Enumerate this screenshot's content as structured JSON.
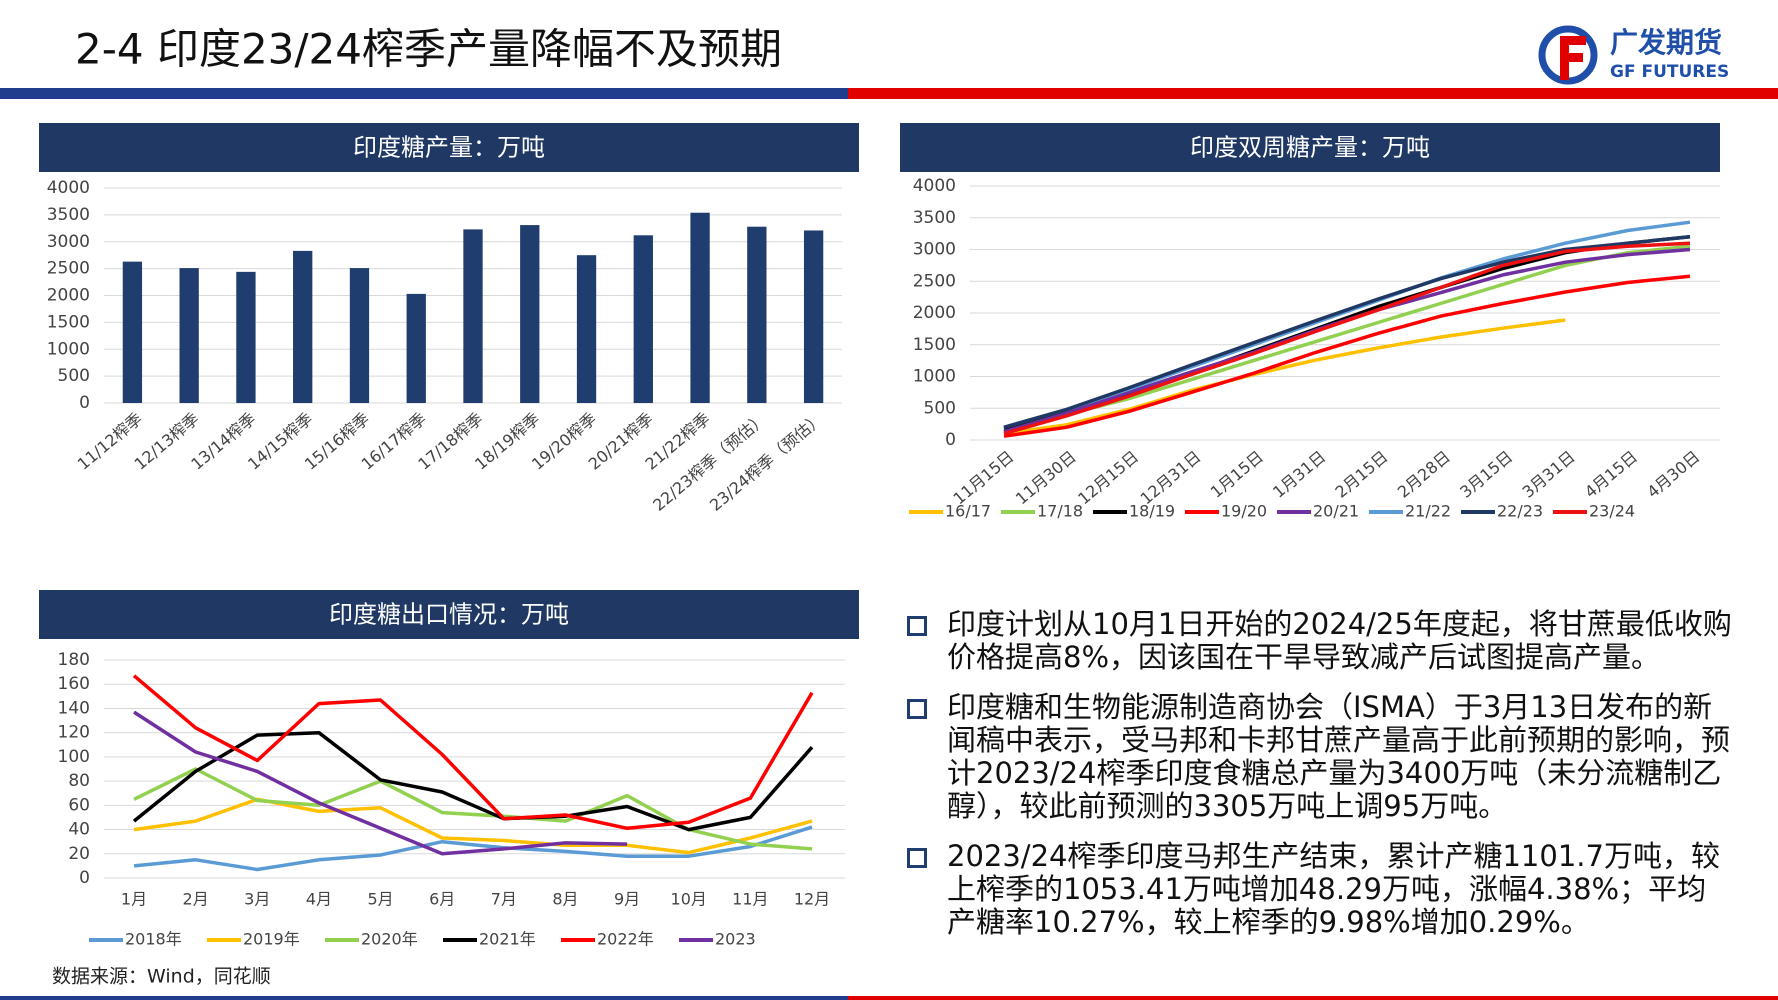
{
  "title": "2-4 印度23/24榨季产量降幅不及预期",
  "logo": {
    "name": "广发期货",
    "name_en": "GF FUTURES"
  },
  "chart_data": [
    {
      "type": "bar",
      "title": "印度糖产量：万吨",
      "categories": [
        "11/12榨季",
        "12/13榨季",
        "13/14榨季",
        "14/15榨季",
        "15/16榨季",
        "16/17榨季",
        "17/18榨季",
        "18/19榨季",
        "19/20榨季",
        "20/21榨季",
        "21/22榨季",
        "22/23榨季（预估）",
        "23/24榨季（预估）"
      ],
      "values": [
        2630,
        2510,
        2440,
        2830,
        2510,
        2030,
        3230,
        3310,
        2750,
        3120,
        3540,
        3280,
        3210
      ],
      "color": "#1f3d6e",
      "ylim": [
        0,
        4000
      ],
      "yticks": [
        0,
        500,
        1000,
        1500,
        2000,
        2500,
        3000,
        3500,
        4000
      ],
      "grid": true
    },
    {
      "type": "line",
      "title": "印度双周糖产量：万吨",
      "categories": [
        "11月15日",
        "11月30日",
        "12月15日",
        "12月31日",
        "1月15日",
        "1月31日",
        "2月15日",
        "2月28日",
        "3月15日",
        "3月31日",
        "4月15日",
        "4月30日"
      ],
      "series": [
        {
          "name": "16/17",
          "color": "#ffc000",
          "values": [
            100,
            240,
            480,
            780,
            1030,
            1260,
            1450,
            1620,
            1760,
            1890,
            null,
            null
          ]
        },
        {
          "name": "17/18",
          "color": "#92d050",
          "values": [
            150,
            400,
            650,
            950,
            1250,
            1550,
            1850,
            2150,
            2450,
            2750,
            2950,
            3050
          ]
        },
        {
          "name": "18/19",
          "color": "#000000",
          "values": [
            180,
            450,
            700,
            1050,
            1400,
            1750,
            2100,
            2400,
            2700,
            2950,
            3100,
            3200
          ]
        },
        {
          "name": "19/20",
          "color": "#ff0000",
          "values": [
            60,
            200,
            450,
            750,
            1050,
            1380,
            1680,
            1950,
            2150,
            2330,
            2480,
            2580
          ]
        },
        {
          "name": "20/21",
          "color": "#7030a0",
          "values": [
            130,
            420,
            750,
            1070,
            1380,
            1730,
            2050,
            2320,
            2600,
            2800,
            2920,
            3000
          ]
        },
        {
          "name": "21/22",
          "color": "#5b9bd5",
          "values": [
            200,
            480,
            800,
            1150,
            1500,
            1850,
            2200,
            2550,
            2850,
            3100,
            3300,
            3430
          ]
        },
        {
          "name": "22/23",
          "color": "#203864",
          "values": [
            200,
            480,
            820,
            1180,
            1530,
            1880,
            2220,
            2540,
            2800,
            3000,
            3100,
            3200
          ]
        },
        {
          "name": "23/24",
          "color": "#ee1111",
          "values": [
            100,
            380,
            690,
            1030,
            1360,
            1710,
            2050,
            2400,
            2750,
            2970,
            3050,
            3100
          ]
        }
      ],
      "ylim": [
        0,
        4000
      ],
      "yticks": [
        0,
        500,
        1000,
        1500,
        2000,
        2500,
        3000,
        3500,
        4000
      ],
      "grid": true
    },
    {
      "type": "line",
      "title": "印度糖出口情况：万吨",
      "categories": [
        "1月",
        "2月",
        "3月",
        "4月",
        "5月",
        "6月",
        "7月",
        "8月",
        "9月",
        "10月",
        "11月",
        "12月"
      ],
      "series": [
        {
          "name": "2018年",
          "color": "#5b9bd5",
          "values": [
            10,
            15,
            7,
            15,
            19,
            30,
            25,
            22,
            18,
            18,
            26,
            42
          ]
        },
        {
          "name": "2019年",
          "color": "#ffc000",
          "values": [
            40,
            47,
            65,
            55,
            58,
            33,
            31,
            27,
            27,
            21,
            33,
            47
          ]
        },
        {
          "name": "2020年",
          "color": "#92d050",
          "values": [
            65,
            90,
            64,
            60,
            80,
            54,
            51,
            47,
            68,
            40,
            28,
            24
          ]
        },
        {
          "name": "2021年",
          "color": "#000000",
          "values": [
            47,
            88,
            118,
            120,
            81,
            71,
            49,
            51,
            59,
            40,
            50,
            108
          ]
        },
        {
          "name": "2022年",
          "color": "#ff0000",
          "values": [
            167,
            124,
            97,
            144,
            147,
            102,
            49,
            52,
            41,
            46,
            66,
            153
          ]
        },
        {
          "name": "2023",
          "color": "#7030a0",
          "values": [
            137,
            104,
            88,
            62,
            41,
            20,
            24,
            29,
            28,
            null,
            null,
            null
          ]
        }
      ],
      "ylim": [
        0,
        180
      ],
      "yticks": [
        0,
        20,
        40,
        60,
        80,
        100,
        120,
        140,
        160,
        180
      ],
      "grid": true
    }
  ],
  "bullets": [
    "印度计划从10月1日开始的2024/25年度起，将甘蔗最低收购价格提高8%，因该国在干旱导致减产后试图提高产量。",
    "印度糖和生物能源制造商协会（ISMA）于3月13日发布的新闻稿中表示，受马邦和卡邦甘蔗产量高于此前预期的影响，预计2023/24榨季印度食糖总产量为3400万吨（未分流糖制乙醇），较此前预测的3305万吨上调95万吨。",
    "2023/24榨季印度马邦生产结束，累计产糖1101.7万吨，较上榨季的1053.41万吨增加48.29万吨，涨幅4.38%；平均产糖率10.27%，较上榨季的9.98%增加0.29%。"
  ],
  "source": "数据来源：Wind，同花顺"
}
